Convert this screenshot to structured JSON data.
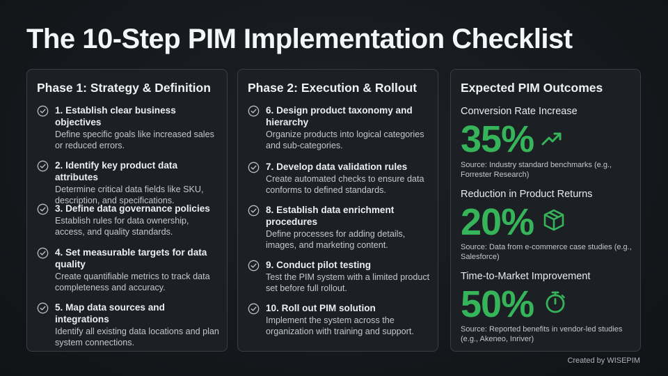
{
  "title": "The 10-Step PIM Implementation Checklist",
  "phase1": {
    "title": "Phase 1: Strategy & Definition",
    "steps": [
      {
        "title": "1. Establish clear business objectives",
        "desc": "Define specific goals like increased sales or reduced errors."
      },
      {
        "title": "2. Identify key product data attributes",
        "desc": "Determine critical data fields like SKU, description, and specifications."
      },
      {
        "title": "3. Define data governance policies",
        "desc": "Establish rules for data ownership, access, and quality standards."
      },
      {
        "title": "4. Set measurable targets for data quality",
        "desc": "Create quantifiable metrics to track data completeness and accuracy."
      },
      {
        "title": "5. Map data sources and integrations",
        "desc": "Identify all existing data locations and plan system connections."
      }
    ]
  },
  "phase2": {
    "title": "Phase 2: Execution & Rollout",
    "steps": [
      {
        "title": "6. Design product taxonomy and hierarchy",
        "desc": "Organize products into logical categories and sub-categories."
      },
      {
        "title": "7. Develop data validation rules",
        "desc": "Create automated checks to ensure data conforms to defined standards."
      },
      {
        "title": "8. Establish data enrichment procedures",
        "desc": "Define processes for adding details, images, and marketing content."
      },
      {
        "title": "9. Conduct pilot testing",
        "desc": "Test the PIM system with a limited product set before full rollout."
      },
      {
        "title": "10. Roll out PIM solution",
        "desc": "Implement the system across the organization with training and support."
      }
    ]
  },
  "outcomes": {
    "title": "Expected PIM Outcomes",
    "items": [
      {
        "label": "Conversion Rate Increase",
        "value": "35%",
        "icon": "trending-up-icon",
        "source": "Source: Industry standard benchmarks (e.g., Forrester Research)"
      },
      {
        "label": "Reduction in Product Returns",
        "value": "20%",
        "icon": "box-icon",
        "source": "Source: Data from e-commerce case studies (e.g., Salesforce)"
      },
      {
        "label": "Time-to-Market Improvement",
        "value": "50%",
        "icon": "stopwatch-icon",
        "source": "Source: Reported benefits in vendor-led studies (e.g., Akeneo, Inriver)"
      }
    ]
  },
  "credit": "Created by WISEPIM",
  "colors": {
    "accent": "#36b45a",
    "background": "#15181c",
    "card": "#1c1f24"
  }
}
